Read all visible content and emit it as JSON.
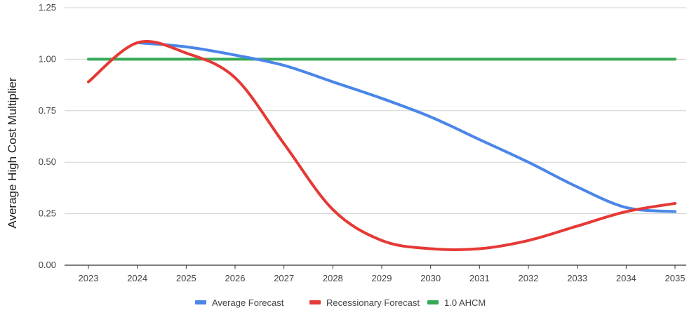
{
  "chart_data": {
    "type": "line",
    "title": "",
    "xlabel": "",
    "ylabel": "Average High Cost Multiplier",
    "x": [
      "2023",
      "2024",
      "2025",
      "2026",
      "2027",
      "2028",
      "2029",
      "2030",
      "2031",
      "2032",
      "2033",
      "2034",
      "2035"
    ],
    "ylim": [
      0,
      1.25
    ],
    "yticks": [
      "0.00",
      "0.25",
      "0.50",
      "0.75",
      "1.00",
      "1.25"
    ],
    "grid": true,
    "legend_position": "bottom",
    "series": [
      {
        "name": "Average Forecast",
        "color": "#4a86e8",
        "values": [
          null,
          1.08,
          1.06,
          1.02,
          0.97,
          0.89,
          0.81,
          0.72,
          0.61,
          0.5,
          0.38,
          0.28,
          0.26
        ]
      },
      {
        "name": "Recessionary Forecast",
        "color": "#e53935",
        "values": [
          0.89,
          1.08,
          1.03,
          0.91,
          0.59,
          0.27,
          0.12,
          0.08,
          0.08,
          0.12,
          0.19,
          0.26,
          0.3
        ]
      },
      {
        "name": "1.0 AHCM",
        "color": "#34a853",
        "values": [
          1.0,
          1.0,
          1.0,
          1.0,
          1.0,
          1.0,
          1.0,
          1.0,
          1.0,
          1.0,
          1.0,
          1.0,
          1.0
        ]
      }
    ]
  }
}
